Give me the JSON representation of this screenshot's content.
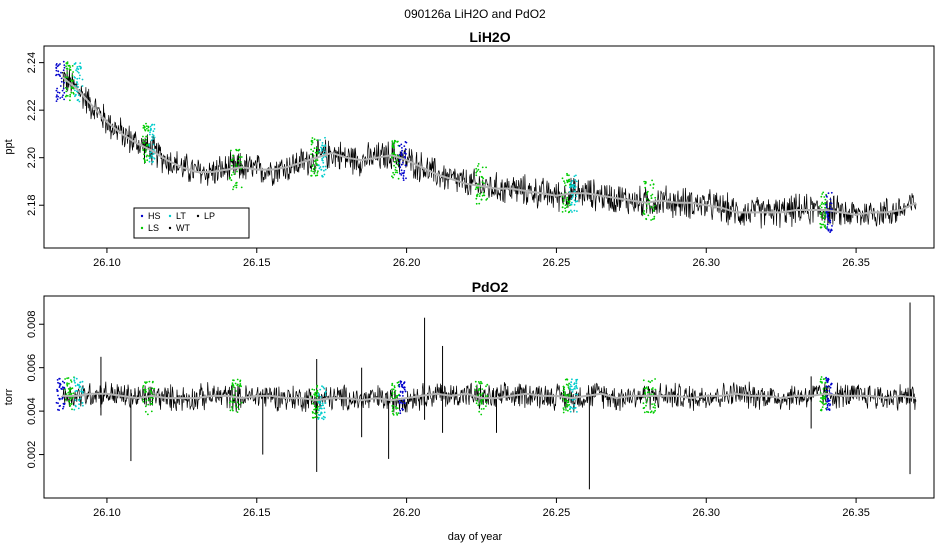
{
  "page": {
    "suptitle": "090126a   LiH2O and PdO2",
    "xlabel": "day of year"
  },
  "colors": {
    "trace": "#000000",
    "smooth": "#b4b4b4",
    "HS": "#0000cc",
    "LS": "#00cc00",
    "LT": "#00cccc",
    "WT": "#000000",
    "LP": "#000000"
  },
  "chart_data": [
    {
      "type": "line",
      "title": "LiH2O",
      "xlabel": "",
      "ylabel": "ppt",
      "xlim": [
        26.079,
        26.376
      ],
      "ylim": [
        2.162,
        2.247
      ],
      "xticks": [
        26.1,
        26.15,
        26.2,
        26.25,
        26.3,
        26.35
      ],
      "xtick_labels": [
        "26.10",
        "26.15",
        "26.20",
        "26.25",
        "26.30",
        "26.35"
      ],
      "yticks": [
        2.18,
        2.2,
        2.22,
        2.24
      ],
      "ytick_labels": [
        "2.18",
        "2.20",
        "2.22",
        "2.24"
      ],
      "legend": {
        "position": "bottom-left",
        "entries": [
          {
            "label": "HS",
            "color_key": "HS"
          },
          {
            "label": "LT",
            "color_key": "LT"
          },
          {
            "label": "LP",
            "color_key": "LP"
          },
          {
            "label": "LS",
            "color_key": "LS"
          },
          {
            "label": "WT",
            "color_key": "WT"
          }
        ]
      },
      "series": [
        {
          "role": "smoothed",
          "x": [
            26.085,
            26.09,
            26.095,
            26.1,
            26.105,
            26.11,
            26.115,
            26.12,
            26.125,
            26.13,
            26.135,
            26.14,
            26.145,
            26.15,
            26.155,
            26.16,
            26.165,
            26.17,
            26.175,
            26.18,
            26.185,
            26.19,
            26.195,
            26.2,
            26.205,
            26.21,
            26.215,
            26.22,
            26.225,
            26.23,
            26.235,
            26.24,
            26.245,
            26.25,
            26.255,
            26.26,
            26.265,
            26.27,
            26.275,
            26.28,
            26.285,
            26.29,
            26.295,
            26.3,
            26.305,
            26.31,
            26.315,
            26.32,
            26.325,
            26.33,
            26.335,
            26.34,
            26.345,
            26.35,
            26.355,
            26.36,
            26.365,
            26.37
          ],
          "y": [
            2.234,
            2.229,
            2.222,
            2.215,
            2.21,
            2.206,
            2.203,
            2.199,
            2.196,
            2.194,
            2.194,
            2.195,
            2.196,
            2.195,
            2.195,
            2.196,
            2.198,
            2.2,
            2.202,
            2.2,
            2.199,
            2.2,
            2.201,
            2.199,
            2.196,
            2.193,
            2.191,
            2.189,
            2.188,
            2.187,
            2.187,
            2.186,
            2.185,
            2.184,
            2.185,
            2.185,
            2.184,
            2.183,
            2.182,
            2.181,
            2.182,
            2.181,
            2.181,
            2.18,
            2.179,
            2.177,
            2.177,
            2.177,
            2.177,
            2.178,
            2.178,
            2.178,
            2.177,
            2.176,
            2.177,
            2.177,
            2.178,
            2.181
          ],
          "noise_amplitude": 0.0065
        }
      ],
      "calibration_bands": [
        {
          "x": [
            26.083,
            26.092
          ],
          "y": 2.232,
          "keys": [
            "HS",
            "LS",
            "LT"
          ]
        },
        {
          "x": [
            26.112,
            26.116
          ],
          "y": 2.206,
          "keys": [
            "LS",
            "LT"
          ]
        },
        {
          "x": [
            26.141,
            26.145
          ],
          "y": 2.195,
          "keys": [
            "LS"
          ]
        },
        {
          "x": [
            26.168,
            26.173
          ],
          "y": 2.2,
          "keys": [
            "LS",
            "LT"
          ]
        },
        {
          "x": [
            26.195,
            26.2
          ],
          "y": 2.199,
          "keys": [
            "LS",
            "HS"
          ]
        },
        {
          "x": [
            26.223,
            26.227
          ],
          "y": 2.189,
          "keys": [
            "LS"
          ]
        },
        {
          "x": [
            26.252,
            26.257
          ],
          "y": 2.185,
          "keys": [
            "LS",
            "LT"
          ]
        },
        {
          "x": [
            26.279,
            26.283
          ],
          "y": 2.182,
          "keys": [
            "LS"
          ]
        },
        {
          "x": [
            26.338,
            26.342
          ],
          "y": 2.177,
          "keys": [
            "LS",
            "HS"
          ]
        }
      ]
    },
    {
      "type": "line",
      "title": "PdO2",
      "xlabel": "day of year",
      "ylabel": "torr",
      "xlim": [
        26.079,
        26.376
      ],
      "ylim": [
        0.0,
        0.0093
      ],
      "xticks": [
        26.1,
        26.15,
        26.2,
        26.25,
        26.3,
        26.35
      ],
      "xtick_labels": [
        "26.10",
        "26.15",
        "26.20",
        "26.25",
        "26.30",
        "26.35"
      ],
      "yticks": [
        0.002,
        0.004,
        0.006,
        0.008
      ],
      "ytick_labels": [
        "0.002",
        "0.004",
        "0.006",
        "0.008"
      ],
      "series": [
        {
          "role": "smoothed",
          "x": [
            26.085,
            26.09,
            26.095,
            26.1,
            26.105,
            26.11,
            26.115,
            26.12,
            26.125,
            26.13,
            26.135,
            26.14,
            26.145,
            26.15,
            26.155,
            26.16,
            26.165,
            26.17,
            26.175,
            26.18,
            26.185,
            26.19,
            26.195,
            26.2,
            26.205,
            26.21,
            26.215,
            26.22,
            26.225,
            26.23,
            26.235,
            26.24,
            26.245,
            26.25,
            26.255,
            26.26,
            26.265,
            26.27,
            26.275,
            26.28,
            26.285,
            26.29,
            26.295,
            26.3,
            26.305,
            26.31,
            26.315,
            26.32,
            26.325,
            26.33,
            26.335,
            26.34,
            26.345,
            26.35,
            26.355,
            26.36,
            26.365,
            26.37
          ],
          "y": [
            0.0047,
            0.0047,
            0.0048,
            0.0048,
            0.0047,
            0.0046,
            0.0047,
            0.0046,
            0.0046,
            0.0046,
            0.0047,
            0.0047,
            0.0046,
            0.0047,
            0.0047,
            0.0046,
            0.0046,
            0.0045,
            0.0046,
            0.0046,
            0.0045,
            0.0046,
            0.0045,
            0.0046,
            0.0047,
            0.0048,
            0.0047,
            0.0048,
            0.0046,
            0.0046,
            0.0047,
            0.0048,
            0.0047,
            0.0047,
            0.0046,
            0.0047,
            0.0048,
            0.0046,
            0.0047,
            0.0047,
            0.0047,
            0.0047,
            0.0046,
            0.0047,
            0.0047,
            0.0048,
            0.0047,
            0.0047,
            0.0046,
            0.0047,
            0.0047,
            0.0048,
            0.0047,
            0.0047,
            0.0047,
            0.0046,
            0.0047,
            0.0046
          ],
          "noise_amplitude": 0.0006
        }
      ],
      "spikes": [
        {
          "x": 26.098,
          "y": [
            0.0038,
            0.0065
          ]
        },
        {
          "x": 26.108,
          "y": [
            0.0017,
            0.005
          ]
        },
        {
          "x": 26.152,
          "y": [
            0.002,
            0.005
          ]
        },
        {
          "x": 26.17,
          "y": [
            0.0012,
            0.0064
          ]
        },
        {
          "x": 26.185,
          "y": [
            0.0028,
            0.006
          ]
        },
        {
          "x": 26.194,
          "y": [
            0.0018,
            0.0045
          ]
        },
        {
          "x": 26.206,
          "y": [
            0.0036,
            0.0083
          ]
        },
        {
          "x": 26.212,
          "y": [
            0.003,
            0.007
          ]
        },
        {
          "x": 26.23,
          "y": [
            0.003,
            0.005
          ]
        },
        {
          "x": 26.261,
          "y": [
            0.0004,
            0.0048
          ]
        },
        {
          "x": 26.335,
          "y": [
            0.0032,
            0.0056
          ]
        },
        {
          "x": 26.368,
          "y": [
            0.0011,
            0.009
          ]
        }
      ],
      "calibration_bands": [
        {
          "x": [
            26.083,
            26.092
          ],
          "y": 0.0048,
          "keys": [
            "HS",
            "LS",
            "LT"
          ]
        },
        {
          "x": [
            26.112,
            26.116
          ],
          "y": 0.0046,
          "keys": [
            "LS"
          ]
        },
        {
          "x": [
            26.141,
            26.145
          ],
          "y": 0.0047,
          "keys": [
            "LS"
          ]
        },
        {
          "x": [
            26.168,
            26.173
          ],
          "y": 0.0044,
          "keys": [
            "LS",
            "LT"
          ]
        },
        {
          "x": [
            26.195,
            26.2
          ],
          "y": 0.0046,
          "keys": [
            "LS",
            "HS"
          ]
        },
        {
          "x": [
            26.223,
            26.227
          ],
          "y": 0.0046,
          "keys": [
            "LS"
          ]
        },
        {
          "x": [
            26.252,
            26.257
          ],
          "y": 0.0047,
          "keys": [
            "LS",
            "LT"
          ]
        },
        {
          "x": [
            26.279,
            26.283
          ],
          "y": 0.0047,
          "keys": [
            "LS"
          ]
        },
        {
          "x": [
            26.338,
            26.342
          ],
          "y": 0.0048,
          "keys": [
            "LS",
            "HS"
          ]
        }
      ]
    }
  ]
}
